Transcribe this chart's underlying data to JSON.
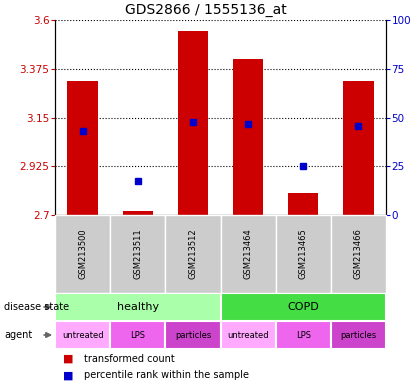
{
  "title": "GDS2866 / 1555136_at",
  "samples": [
    "GSM213500",
    "GSM213511",
    "GSM213512",
    "GSM213464",
    "GSM213465",
    "GSM213466"
  ],
  "bar_values": [
    3.32,
    2.72,
    3.55,
    3.42,
    2.8,
    3.32
  ],
  "bar_base": 2.7,
  "percentile_values": [
    3.09,
    2.855,
    3.13,
    3.12,
    2.925,
    3.11
  ],
  "ylim_left": [
    2.7,
    3.6
  ],
  "ylim_right": [
    0,
    100
  ],
  "yticks_left": [
    2.7,
    2.925,
    3.15,
    3.375,
    3.6
  ],
  "yticks_right": [
    0,
    25,
    50,
    75,
    100
  ],
  "ytick_labels_left": [
    "2.7",
    "2.925",
    "3.15",
    "3.375",
    "3.6"
  ],
  "ytick_labels_right": [
    "0",
    "25",
    "50",
    "75",
    "100%"
  ],
  "bar_color": "#cc0000",
  "percentile_color": "#0000cc",
  "bar_width": 0.55,
  "percentile_marker_size": 5,
  "disease_states": [
    {
      "label": "healthy",
      "span": [
        0,
        3
      ],
      "color": "#aaffaa"
    },
    {
      "label": "COPD",
      "span": [
        3,
        6
      ],
      "color": "#44dd44"
    }
  ],
  "agents": [
    {
      "label": "untreated",
      "index": 0,
      "color": "#ffaaff"
    },
    {
      "label": "LPS",
      "index": 1,
      "color": "#ee66ee"
    },
    {
      "label": "particles",
      "index": 2,
      "color": "#cc44cc"
    },
    {
      "label": "untreated",
      "index": 3,
      "color": "#ffaaff"
    },
    {
      "label": "LPS",
      "index": 4,
      "color": "#ee66ee"
    },
    {
      "label": "particles",
      "index": 5,
      "color": "#cc44cc"
    }
  ],
  "legend_items": [
    {
      "label": "transformed count",
      "color": "#cc0000"
    },
    {
      "label": "percentile rank within the sample",
      "color": "#0000cc"
    }
  ],
  "grid_color": "black",
  "title_fontsize": 10,
  "tick_fontsize": 7.5,
  "label_fontsize": 8,
  "sample_fontsize": 6,
  "left_tick_color": "#cc0000",
  "right_tick_color": "#0000cc",
  "bg_color": "#ffffff"
}
